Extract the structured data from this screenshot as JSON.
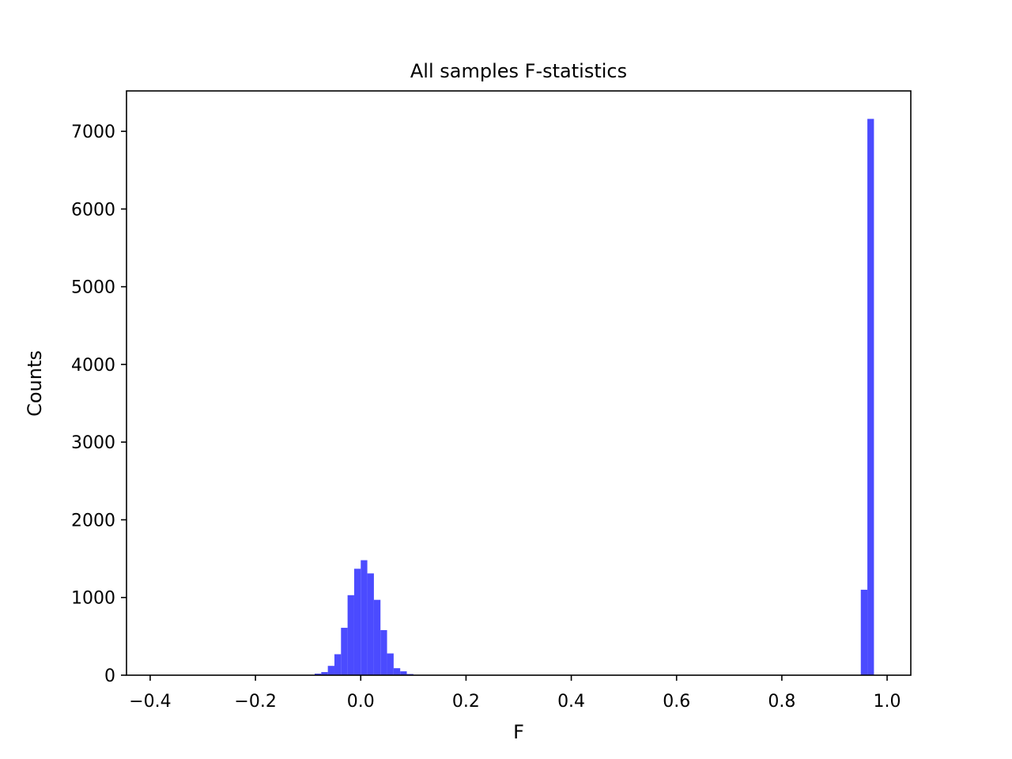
{
  "chart_data": {
    "type": "bar",
    "title": "All samples F-statistics",
    "xlabel": "F",
    "ylabel": "Counts",
    "xlim": [
      -0.445,
      1.045
    ],
    "ylim": [
      0,
      7520
    ],
    "grid": false,
    "bar_color": "#4b4bff",
    "bin_width": 0.0125,
    "bins": [
      {
        "x0": -0.0875,
        "count": 20
      },
      {
        "x0": -0.075,
        "count": 40
      },
      {
        "x0": -0.0625,
        "count": 120
      },
      {
        "x0": -0.05,
        "count": 270
      },
      {
        "x0": -0.0375,
        "count": 610
      },
      {
        "x0": -0.025,
        "count": 1030
      },
      {
        "x0": -0.0125,
        "count": 1370
      },
      {
        "x0": 0.0,
        "count": 1480
      },
      {
        "x0": 0.0125,
        "count": 1310
      },
      {
        "x0": 0.025,
        "count": 970
      },
      {
        "x0": 0.0375,
        "count": 580
      },
      {
        "x0": 0.05,
        "count": 280
      },
      {
        "x0": 0.0625,
        "count": 90
      },
      {
        "x0": 0.075,
        "count": 50
      },
      {
        "x0": 0.0875,
        "count": 15
      },
      {
        "x0": 0.1,
        "count": 5
      },
      {
        "x0": 0.95,
        "count": 1100
      },
      {
        "x0": 0.9625,
        "count": 7160
      }
    ],
    "x_ticks": [
      {
        "value": -0.4,
        "label": "−0.4"
      },
      {
        "value": -0.2,
        "label": "−0.2"
      },
      {
        "value": 0.0,
        "label": "0.0"
      },
      {
        "value": 0.2,
        "label": "0.2"
      },
      {
        "value": 0.4,
        "label": "0.4"
      },
      {
        "value": 0.6,
        "label": "0.6"
      },
      {
        "value": 0.8,
        "label": "0.8"
      },
      {
        "value": 1.0,
        "label": "1.0"
      }
    ],
    "y_ticks": [
      {
        "value": 0,
        "label": "0"
      },
      {
        "value": 1000,
        "label": "1000"
      },
      {
        "value": 2000,
        "label": "2000"
      },
      {
        "value": 3000,
        "label": "3000"
      },
      {
        "value": 4000,
        "label": "4000"
      },
      {
        "value": 5000,
        "label": "5000"
      },
      {
        "value": 6000,
        "label": "6000"
      },
      {
        "value": 7000,
        "label": "7000"
      }
    ]
  }
}
